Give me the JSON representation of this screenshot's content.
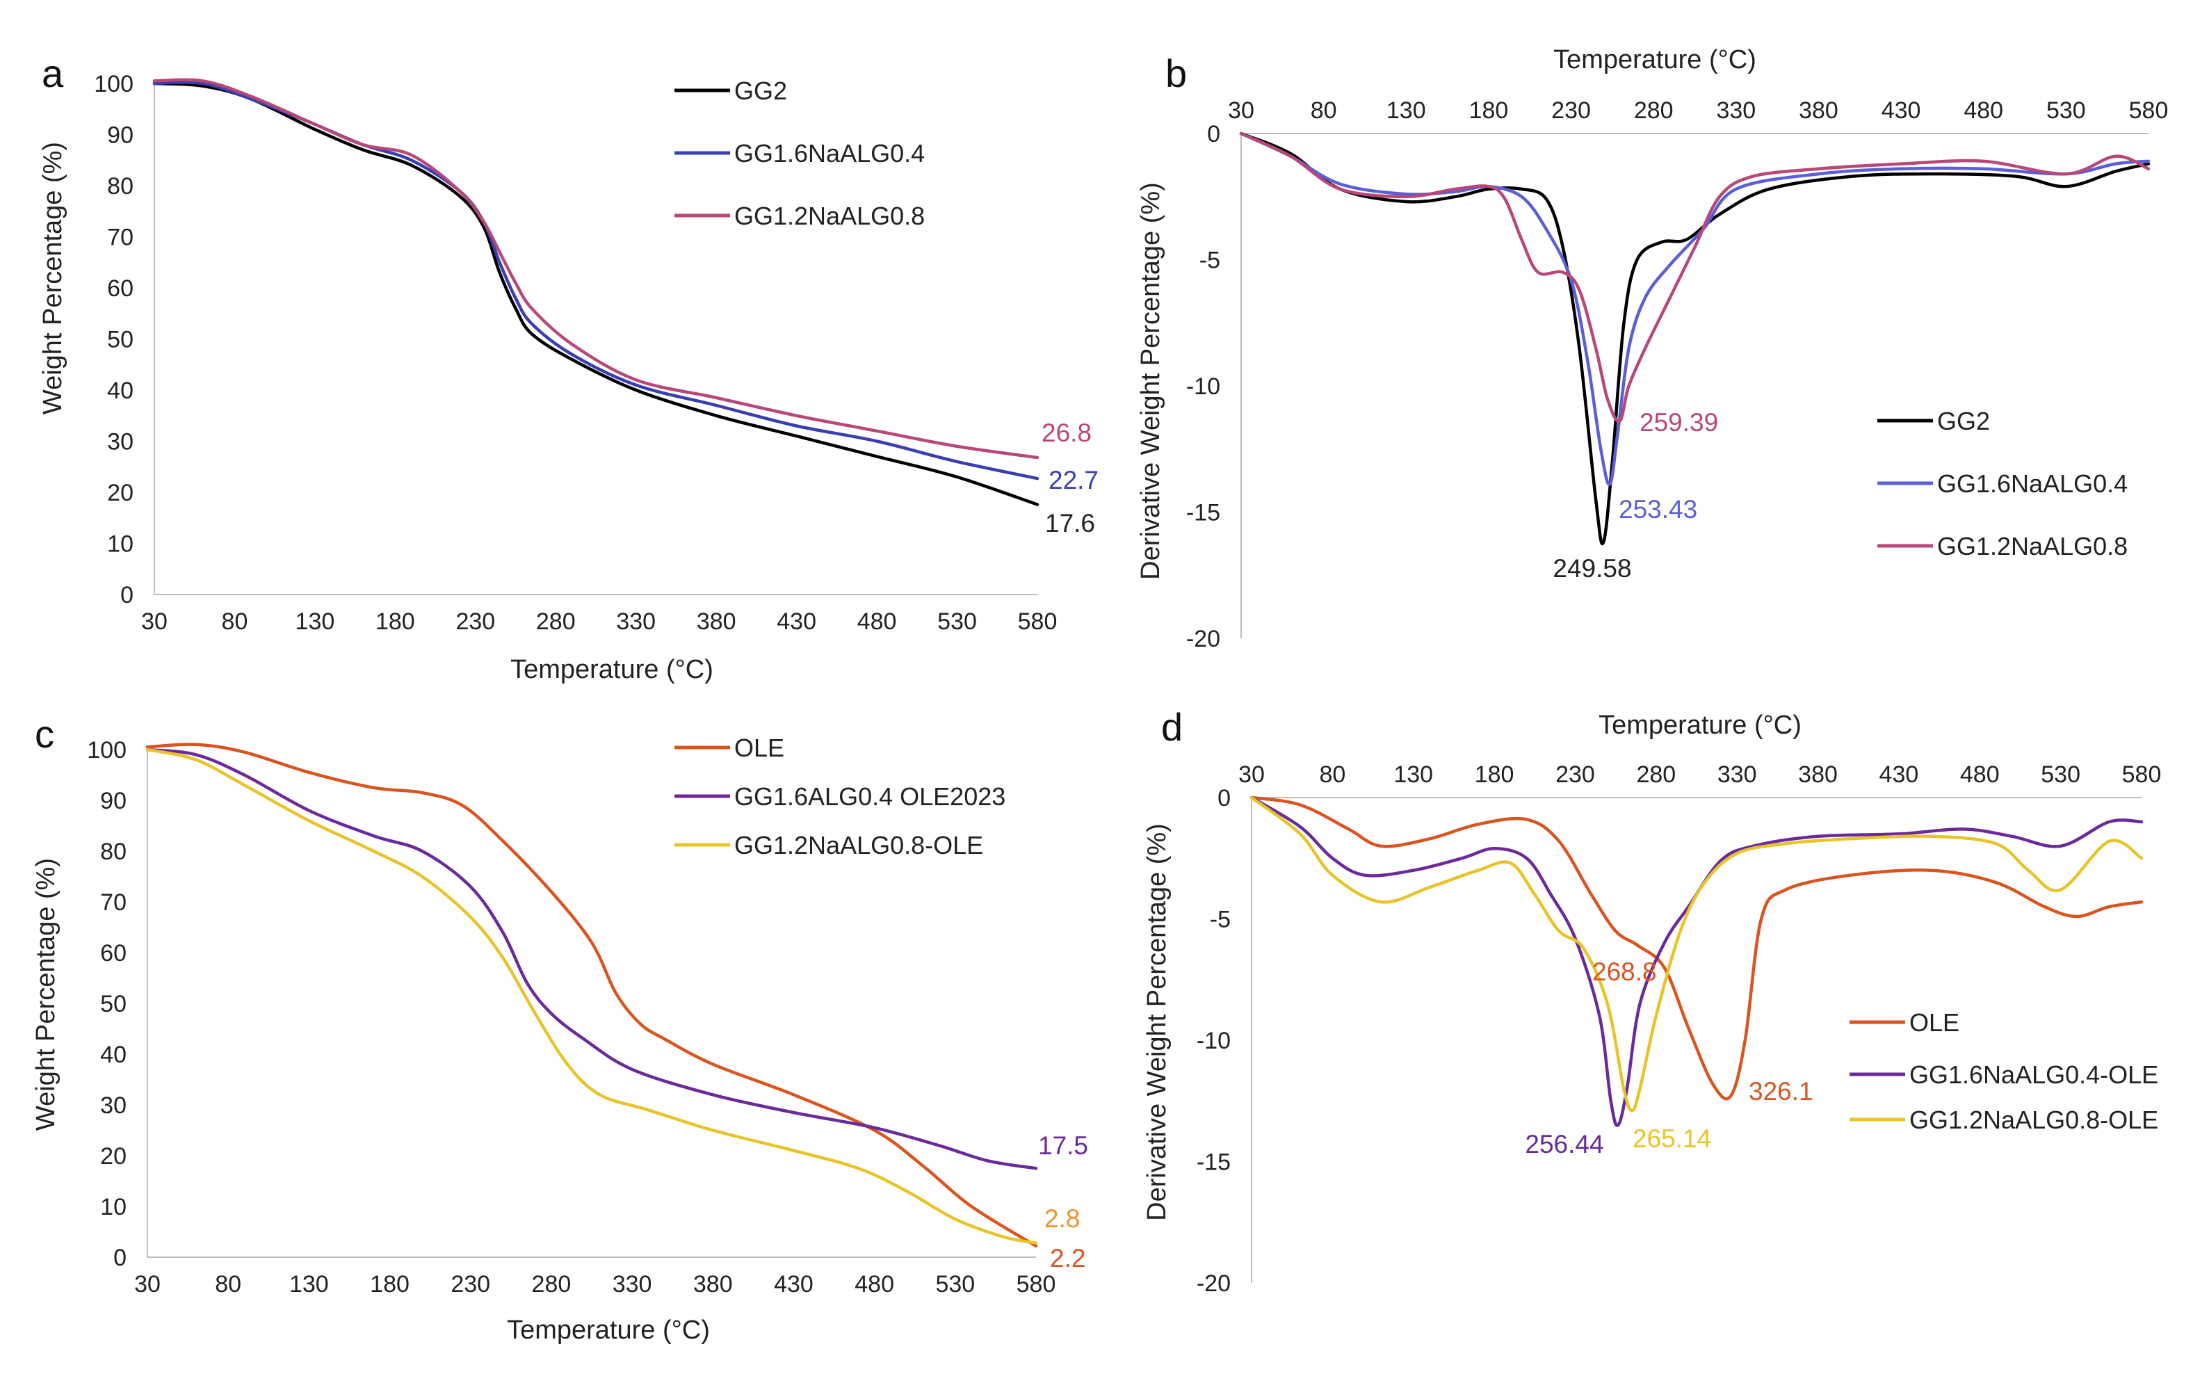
{
  "chart_data": [
    {
      "panel": "a",
      "type": "line",
      "title": "",
      "xlabel": "Temperature (°C)",
      "ylabel": "Weight Percentage (%)",
      "xlim": [
        30,
        580
      ],
      "ylim": [
        0,
        100
      ],
      "xticks": [
        30,
        80,
        130,
        180,
        230,
        280,
        330,
        380,
        430,
        480,
        530,
        580
      ],
      "yticks": [
        0,
        10,
        20,
        30,
        40,
        50,
        60,
        70,
        80,
        90,
        100
      ],
      "legend_position": "top-right",
      "series": [
        {
          "name": "GG2",
          "color": "#000000",
          "end_label": "17.6",
          "x": [
            30,
            60,
            90,
            130,
            160,
            190,
            220,
            235,
            245,
            255,
            265,
            290,
            330,
            380,
            430,
            480,
            530,
            580
          ],
          "y": [
            100,
            99.5,
            97,
            91,
            87,
            84,
            78,
            72,
            63,
            56,
            51,
            46,
            40,
            35,
            31,
            27,
            23,
            17.6
          ]
        },
        {
          "name": "GG1.6NaALG0.4",
          "color": "#3a3fb0",
          "end_label": "22.7",
          "x": [
            30,
            60,
            90,
            130,
            160,
            190,
            220,
            235,
            245,
            255,
            265,
            290,
            330,
            380,
            430,
            480,
            530,
            580
          ],
          "y": [
            100,
            100,
            97,
            92,
            88,
            85,
            79,
            73,
            65,
            58,
            53,
            47,
            41,
            37,
            33,
            30,
            26,
            22.7
          ]
        },
        {
          "name": "GG1.2NaALG0.8",
          "color": "#b8477a",
          "end_label": "26.8",
          "x": [
            30,
            60,
            90,
            130,
            160,
            190,
            220,
            235,
            245,
            255,
            265,
            290,
            330,
            380,
            430,
            480,
            530,
            580
          ],
          "y": [
            100.5,
            100.5,
            97.5,
            92,
            88,
            86,
            79,
            73,
            67,
            61,
            56,
            49,
            42,
            38.5,
            35,
            32,
            29,
            26.8
          ]
        }
      ],
      "annotations": [
        {
          "text": "26.8",
          "x": 580,
          "y": 26.8,
          "color": "#b8477a"
        },
        {
          "text": "22.7",
          "x": 580,
          "y": 22.7,
          "color": "#3a3fb0"
        },
        {
          "text": "17.6",
          "x": 580,
          "y": 17.6,
          "color": "#222222"
        }
      ]
    },
    {
      "panel": "b",
      "type": "line",
      "title": "",
      "xlabel": "Temperature (°C)",
      "ylabel": "Derivative Weight Percentage (%)",
      "xlim": [
        30,
        580
      ],
      "ylim": [
        -20,
        0
      ],
      "xticks": [
        30,
        80,
        130,
        180,
        230,
        280,
        330,
        380,
        430,
        480,
        530,
        580
      ],
      "yticks": [
        0,
        -5,
        -10,
        -15,
        -20
      ],
      "legend_position": "bottom-right",
      "series": [
        {
          "name": "GG2",
          "color": "#000000",
          "x": [
            30,
            60,
            90,
            130,
            160,
            180,
            200,
            215,
            225,
            235,
            245,
            249.58,
            255,
            262,
            270,
            285,
            300,
            320,
            350,
            400,
            450,
            500,
            530,
            560,
            580
          ],
          "y": [
            0,
            -0.8,
            -2.2,
            -2.7,
            -2.5,
            -2.2,
            -2.2,
            -2.6,
            -4.5,
            -8.5,
            -14.5,
            -16.2,
            -13,
            -7.5,
            -5,
            -4.3,
            -4.2,
            -3.2,
            -2.2,
            -1.7,
            -1.6,
            -1.7,
            -2.1,
            -1.5,
            -1.2
          ]
        },
        {
          "name": "GG1.6NaALG0.4",
          "color": "#5b5fd6",
          "x": [
            30,
            60,
            90,
            130,
            160,
            180,
            200,
            215,
            230,
            240,
            248,
            253.43,
            258,
            265,
            275,
            290,
            310,
            330,
            380,
            430,
            480,
            530,
            560,
            580
          ],
          "y": [
            0,
            -0.9,
            -2.0,
            -2.4,
            -2.3,
            -2.1,
            -2.5,
            -3.8,
            -5.8,
            -9,
            -12.5,
            -13.9,
            -12,
            -8.5,
            -6.5,
            -5.2,
            -3.8,
            -2.2,
            -1.6,
            -1.4,
            -1.4,
            -1.6,
            -1.2,
            -1.1
          ]
        },
        {
          "name": "GG1.2NaALG0.8",
          "color": "#b8477a",
          "x": [
            30,
            60,
            90,
            130,
            160,
            180,
            190,
            200,
            210,
            225,
            235,
            245,
            252,
            259.39,
            265,
            275,
            290,
            305,
            320,
            340,
            380,
            430,
            480,
            530,
            560,
            580
          ],
          "y": [
            0,
            -0.9,
            -2.2,
            -2.5,
            -2.2,
            -2.1,
            -2.6,
            -4.2,
            -5.5,
            -5.5,
            -6.2,
            -8.5,
            -10.5,
            -11.4,
            -10,
            -8.5,
            -6.5,
            -4.5,
            -2.5,
            -1.7,
            -1.4,
            -1.2,
            -1.1,
            -1.6,
            -0.9,
            -1.4
          ]
        }
      ],
      "annotations": [
        {
          "text": "259.39",
          "x": 259.39,
          "y": -11.4,
          "color": "#b8477a"
        },
        {
          "text": "253.43",
          "x": 253.43,
          "y": -13.9,
          "color": "#5b5fd6"
        },
        {
          "text": "249.58",
          "x": 249.58,
          "y": -16.2,
          "color": "#222222"
        }
      ]
    },
    {
      "panel": "c",
      "type": "line",
      "title": "",
      "xlabel": "Temperature (°C)",
      "ylabel": "Weight Percentage (%)",
      "xlim": [
        30,
        580
      ],
      "ylim": [
        0,
        100
      ],
      "xticks": [
        30,
        80,
        130,
        180,
        230,
        280,
        330,
        380,
        430,
        480,
        530,
        580
      ],
      "yticks": [
        0,
        10,
        20,
        30,
        40,
        50,
        60,
        70,
        80,
        90,
        100
      ],
      "legend_position": "top-right",
      "series": [
        {
          "name": "OLE",
          "color": "#d9541e",
          "end_label": "2.2",
          "x": [
            30,
            60,
            90,
            130,
            170,
            200,
            225,
            250,
            280,
            305,
            320,
            335,
            350,
            380,
            430,
            480,
            510,
            540,
            580
          ],
          "y": [
            100.5,
            101,
            99.5,
            95.5,
            92.5,
            91.5,
            89,
            82,
            72,
            62,
            52,
            46,
            43,
            38,
            32,
            25,
            18,
            10,
            2.2
          ]
        },
        {
          "name": "GG1.6ALG0.4 OLE2023",
          "color": "#6b2a99",
          "end_label": "17.5",
          "x": [
            30,
            60,
            90,
            130,
            170,
            200,
            230,
            250,
            265,
            280,
            300,
            330,
            380,
            430,
            480,
            520,
            550,
            580
          ],
          "y": [
            100,
            99,
            95,
            88,
            83,
            80,
            73,
            64,
            54,
            48,
            43,
            37,
            32,
            28.5,
            25.5,
            22,
            19,
            17.5
          ]
        },
        {
          "name": "GG1.2NaALG0.8-OLE",
          "color": "#e8c42a",
          "end_label": "2.8",
          "x": [
            30,
            60,
            90,
            130,
            170,
            200,
            230,
            250,
            270,
            290,
            310,
            340,
            380,
            430,
            470,
            500,
            530,
            560,
            580
          ],
          "y": [
            100,
            98,
            93,
            86,
            80,
            75,
            67,
            59,
            48,
            38,
            32,
            29,
            25,
            21,
            17.5,
            13,
            7.5,
            4,
            2.8
          ]
        }
      ],
      "annotations": [
        {
          "text": "17.5",
          "x": 580,
          "y": 17.5,
          "color": "#6b2a99"
        },
        {
          "text": "2.8",
          "x": 580,
          "y": 2.8,
          "color": "#f0922b"
        },
        {
          "text": "2.2",
          "x": 580,
          "y": 2.2,
          "color": "#d9541e"
        }
      ]
    },
    {
      "panel": "d",
      "type": "line",
      "title": "",
      "xlabel": "Temperature (°C)",
      "ylabel": "Derivative Weight Percentage (%)",
      "xlim": [
        30,
        580
      ],
      "ylim": [
        -20,
        0
      ],
      "xticks": [
        30,
        80,
        130,
        180,
        230,
        280,
        330,
        380,
        430,
        480,
        530,
        580
      ],
      "yticks": [
        0,
        -5,
        -10,
        -15,
        -20
      ],
      "legend_position": "bottom-right",
      "series": [
        {
          "name": "OLE",
          "color": "#d9541e",
          "x": [
            30,
            60,
            90,
            110,
            140,
            170,
            200,
            220,
            240,
            255,
            268.8,
            285,
            300,
            315,
            326.1,
            335,
            345,
            360,
            400,
            450,
            490,
            520,
            540,
            560,
            580
          ],
          "y": [
            0,
            -0.3,
            -1.3,
            -2,
            -1.7,
            -1.1,
            -0.9,
            -1.8,
            -4,
            -5.5,
            -6.1,
            -7,
            -9.5,
            -11.8,
            -12.3,
            -10,
            -5,
            -3.8,
            -3.2,
            -3.0,
            -3.5,
            -4.5,
            -4.9,
            -4.5,
            -4.3
          ]
        },
        {
          "name": "GG1.6NaALG0.4-OLE",
          "color": "#6b2a99",
          "x": [
            30,
            60,
            80,
            100,
            130,
            160,
            180,
            200,
            215,
            230,
            245,
            252,
            256.44,
            262,
            270,
            285,
            300,
            320,
            340,
            380,
            430,
            470,
            500,
            530,
            560,
            580
          ],
          "y": [
            0,
            -1.2,
            -2.5,
            -3.2,
            -3.0,
            -2.5,
            -2.1,
            -2.5,
            -4,
            -5.8,
            -9,
            -12.5,
            -13.5,
            -12,
            -8.5,
            -6,
            -4.5,
            -2.6,
            -2,
            -1.6,
            -1.5,
            -1.3,
            -1.6,
            -2,
            -1,
            -1
          ]
        },
        {
          "name": "GG1.2NaALG0.8-OLE",
          "color": "#e8c42a",
          "x": [
            30,
            60,
            80,
            110,
            140,
            170,
            190,
            205,
            220,
            235,
            250,
            260,
            265.14,
            270,
            280,
            295,
            310,
            330,
            360,
            400,
            450,
            490,
            510,
            530,
            560,
            580
          ],
          "y": [
            0,
            -1.5,
            -3.2,
            -4.3,
            -3.7,
            -3,
            -2.7,
            -4,
            -5.5,
            -6.2,
            -8.5,
            -12,
            -12.9,
            -12,
            -9,
            -5.5,
            -3.5,
            -2.3,
            -1.9,
            -1.7,
            -1.6,
            -1.9,
            -3,
            -3.8,
            -1.8,
            -2.5
          ]
        }
      ],
      "annotations": [
        {
          "text": "268.8",
          "x": 268.8,
          "y": -6.1,
          "color": "#d9541e"
        },
        {
          "text": "326.1",
          "x": 326.1,
          "y": -12.3,
          "color": "#d9541e"
        },
        {
          "text": "256.44",
          "x": 256.44,
          "y": -13.5,
          "color": "#6b2a99"
        },
        {
          "text": "265.14",
          "x": 265.14,
          "y": -12.9,
          "color": "#e8c42a"
        }
      ]
    }
  ]
}
